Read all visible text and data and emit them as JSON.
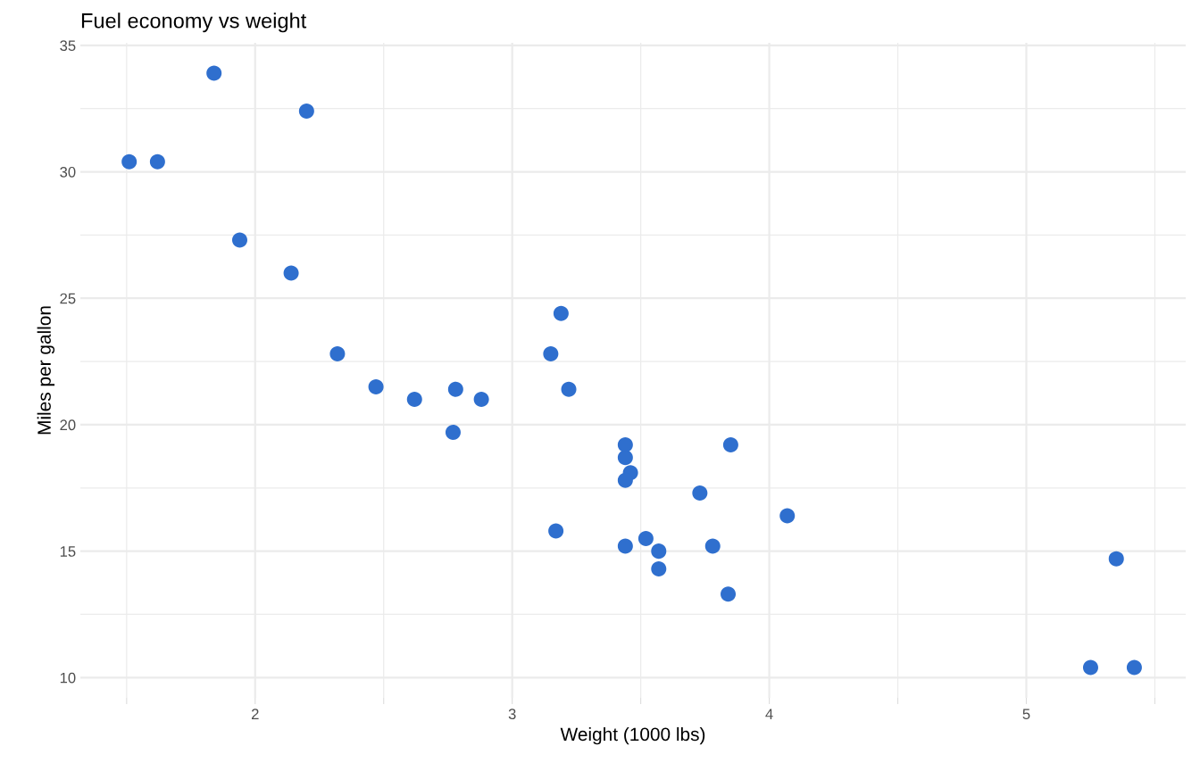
{
  "chart_data": {
    "type": "scatter",
    "title": "Fuel economy vs weight",
    "xlabel": "Weight (1000 lbs)",
    "ylabel": "Miles per gallon",
    "x": [
      2.62,
      2.88,
      2.32,
      3.22,
      3.44,
      3.46,
      3.57,
      3.19,
      3.15,
      3.44,
      3.44,
      4.07,
      3.73,
      3.78,
      5.25,
      5.42,
      5.35,
      2.2,
      1.62,
      1.84,
      2.47,
      3.52,
      3.44,
      3.84,
      3.85,
      1.94,
      2.14,
      1.51,
      3.17,
      2.77,
      3.57,
      2.78
    ],
    "series": [
      {
        "color": "#2f6fce",
        "values": [
          21.0,
          21.0,
          22.8,
          21.4,
          18.7,
          18.1,
          14.3,
          24.4,
          22.8,
          19.2,
          17.8,
          16.4,
          17.3,
          15.2,
          10.4,
          10.4,
          14.7,
          32.4,
          30.4,
          33.9,
          21.5,
          15.5,
          15.2,
          13.3,
          19.2,
          27.3,
          26.0,
          30.4,
          15.8,
          19.7,
          15.0,
          21.4
        ]
      }
    ],
    "xlim": [
      1.32,
      5.62
    ],
    "ylim": [
      9.2,
      35.1
    ],
    "xticks": [
      {
        "value": 1.5,
        "label": null
      },
      2,
      {
        "value": 2.5,
        "label": null
      },
      3,
      {
        "value": 3.5,
        "label": null
      },
      4,
      {
        "value": 4.5,
        "label": null
      },
      5,
      {
        "value": 5.5,
        "label": null
      }
    ],
    "yticks": [
      10,
      {
        "value": 12.5,
        "label": null
      },
      15,
      {
        "value": 17.5,
        "label": null
      },
      20,
      {
        "value": 22.5,
        "label": null
      },
      25,
      {
        "value": 27.5,
        "label": null
      },
      30,
      {
        "value": 32.5,
        "label": null
      },
      35
    ],
    "grid": true,
    "marker": "circle",
    "legend": false
  }
}
